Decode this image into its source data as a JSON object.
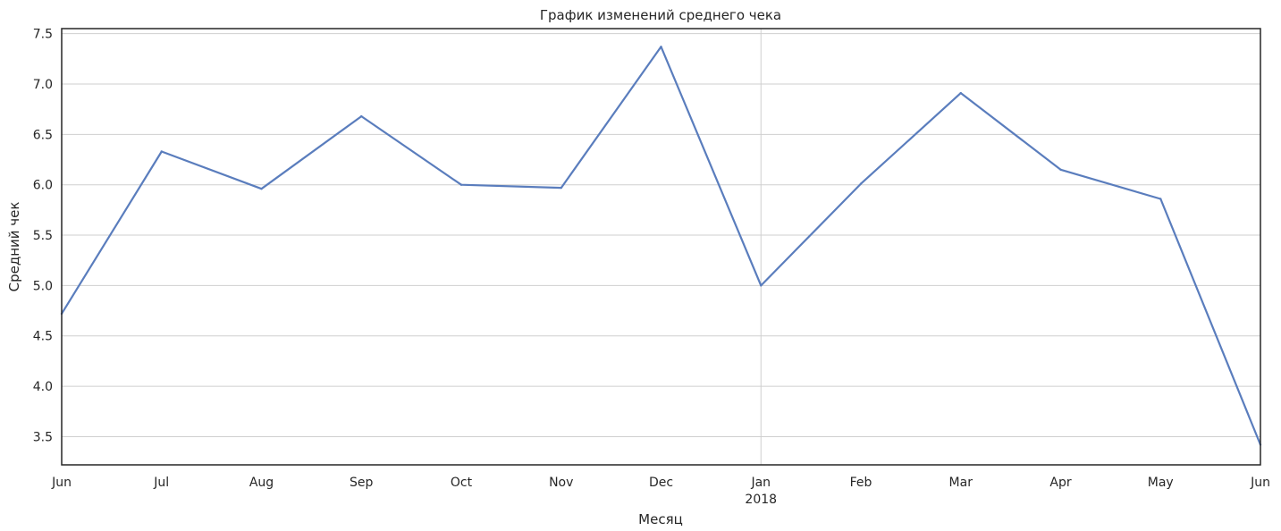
{
  "chart_data": {
    "type": "line",
    "title": "График изменений среднего чека",
    "xlabel": "Месяц",
    "ylabel": "Средний чек",
    "x": [
      "2017-06",
      "2017-07",
      "2017-08",
      "2017-09",
      "2017-10",
      "2017-11",
      "2017-12",
      "2018-01",
      "2018-02",
      "2018-03",
      "2018-04",
      "2018-05",
      "2018-06"
    ],
    "x_tick_labels": [
      "Jun",
      "Jul",
      "Aug",
      "Sep",
      "Oct",
      "Nov",
      "Dec",
      "Jan",
      "Feb",
      "Mar",
      "Apr",
      "May",
      "Jun"
    ],
    "x_tick_sublabels": [
      "",
      "",
      "",
      "",
      "",
      "",
      "",
      "2018",
      "",
      "",
      "",
      "",
      ""
    ],
    "series": [
      {
        "values": [
          4.72,
          6.33,
          5.96,
          6.68,
          6.0,
          5.97,
          7.37,
          5.0,
          6.01,
          6.91,
          6.15,
          5.86,
          3.42
        ]
      }
    ],
    "ylim": [
      3.22,
      7.55
    ],
    "y_ticks": [
      3.5,
      4.0,
      4.5,
      5.0,
      5.5,
      6.0,
      6.5,
      7.0,
      7.5
    ],
    "y_tick_labels": [
      "3.5",
      "4.0",
      "4.5",
      "5.0",
      "5.5",
      "6.0",
      "6.5",
      "7.0",
      "7.5"
    ],
    "grid": true,
    "vertical_grid_at": [
      "2018-01"
    ],
    "colors": {
      "line": "#5a7dbd",
      "grid": "#cfcfcf",
      "frame": "#262626"
    }
  }
}
